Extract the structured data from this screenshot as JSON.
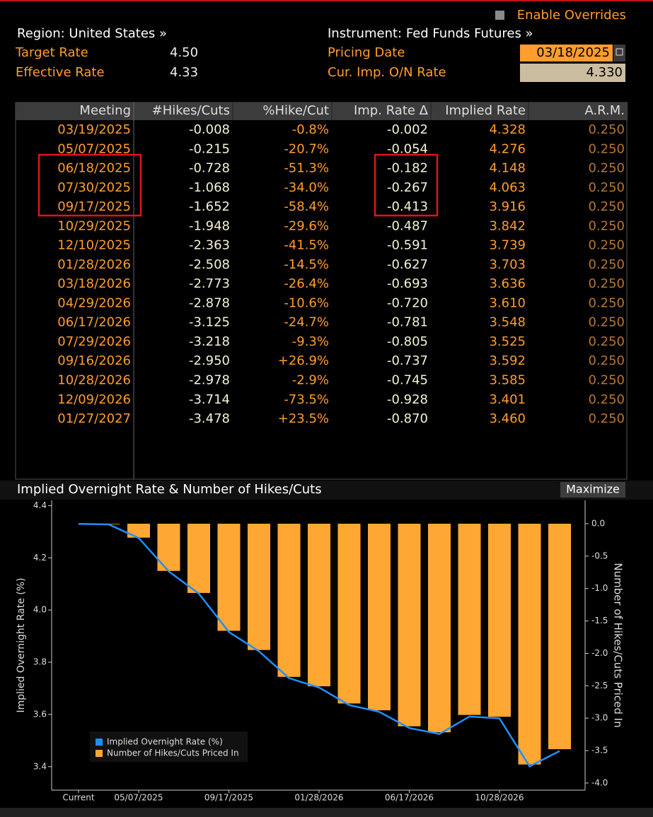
{
  "header": {
    "overrides": "Enable Overrides",
    "region": "Region: United States »",
    "instrument": "Instrument: Fed Funds Futures »",
    "fields": [
      {
        "label": "Target Rate",
        "value": "4.50"
      },
      {
        "label": "Effective Rate",
        "value": "4.33"
      },
      {
        "label": "Pricing Date",
        "value": "03/18/2025"
      },
      {
        "label": "Cur. Imp. O/N Rate",
        "value": "4.330"
      }
    ]
  },
  "table": {
    "columns": [
      "Meeting",
      "#Hikes/Cuts",
      "%Hike/Cut",
      "Imp. Rate Δ",
      "Implied Rate",
      "A.R.M."
    ],
    "rows": [
      [
        "03/19/2025",
        "-0.008",
        "-0.8%",
        "-0.002",
        "4.328",
        "0.250"
      ],
      [
        "05/07/2025",
        "-0.215",
        "-20.7%",
        "-0.054",
        "4.276",
        "0.250"
      ],
      [
        "06/18/2025",
        "-0.728",
        "-51.3%",
        "-0.182",
        "4.148",
        "0.250"
      ],
      [
        "07/30/2025",
        "-1.068",
        "-34.0%",
        "-0.267",
        "4.063",
        "0.250"
      ],
      [
        "09/17/2025",
        "-1.652",
        "-58.4%",
        "-0.413",
        "3.916",
        "0.250"
      ],
      [
        "10/29/2025",
        "-1.948",
        "-29.6%",
        "-0.487",
        "3.842",
        "0.250"
      ],
      [
        "12/10/2025",
        "-2.363",
        "-41.5%",
        "-0.591",
        "3.739",
        "0.250"
      ],
      [
        "01/28/2026",
        "-2.508",
        "-14.5%",
        "-0.627",
        "3.703",
        "0.250"
      ],
      [
        "03/18/2026",
        "-2.773",
        "-26.4%",
        "-0.693",
        "3.636",
        "0.250"
      ],
      [
        "04/29/2026",
        "-2.878",
        "-10.6%",
        "-0.720",
        "3.610",
        "0.250"
      ],
      [
        "06/17/2026",
        "-3.125",
        "-24.7%",
        "-0.781",
        "3.548",
        "0.250"
      ],
      [
        "07/29/2026",
        "-3.218",
        "-9.3%",
        "-0.805",
        "3.525",
        "0.250"
      ],
      [
        "09/16/2026",
        "-2.950",
        "+26.9%",
        "-0.737",
        "3.592",
        "0.250"
      ],
      [
        "10/28/2026",
        "-2.978",
        "-2.9%",
        "-0.745",
        "3.585",
        "0.250"
      ],
      [
        "12/09/2026",
        "-3.714",
        "-73.5%",
        "-0.928",
        "3.401",
        "0.250"
      ],
      [
        "01/27/2027",
        "-3.478",
        "+23.5%",
        "-0.870",
        "3.460",
        "0.250"
      ]
    ]
  },
  "chart_data": {
    "type": "combo",
    "title": "Implied Overnight Rate & Number of Hikes/Cuts",
    "button": "Maximize",
    "ylabel": "Implied Overnight Rate (%)",
    "y2label": "Number of Hikes/Cuts Priced In",
    "categories": [
      "Current",
      null,
      "05/07/2025",
      null,
      null,
      "09/17/2025",
      null,
      null,
      "01/28/2026",
      null,
      null,
      "06/17/2026",
      null,
      null,
      "10/28/2026",
      null,
      null
    ],
    "series": [
      {
        "name": "Implied Overnight Rate (%)",
        "type": "line",
        "axis": "y",
        "color": "#1f8fff",
        "values": [
          4.33,
          4.328,
          4.276,
          4.148,
          4.063,
          3.916,
          3.842,
          3.739,
          3.703,
          3.636,
          3.61,
          3.548,
          3.525,
          3.592,
          3.585,
          3.401,
          3.46
        ]
      },
      {
        "name": "Number of Hikes/Cuts Priced In",
        "type": "bar",
        "axis": "y2",
        "color": "#ffa733",
        "values": [
          null,
          -0.008,
          -0.215,
          -0.728,
          -1.068,
          -1.652,
          -1.948,
          -2.363,
          -2.508,
          -2.773,
          -2.878,
          -3.125,
          -3.218,
          -2.95,
          -2.978,
          -3.714,
          -3.478
        ]
      }
    ],
    "ylim": [
      3.31,
      4.42
    ],
    "yticks": [
      3.4,
      3.6,
      3.8,
      {
        "value": 4,
        "label": "4.0"
      },
      4.2,
      4.4
    ],
    "y2lim": [
      -4.11,
      0.36
    ],
    "y2ticks": [
      {
        "value": 0,
        "label": "0.0"
      },
      -0.5,
      {
        "value": -1,
        "label": "-1.0"
      },
      -1.5,
      {
        "value": -2,
        "label": "-2.0"
      },
      -2.5,
      {
        "value": -3,
        "label": "-3.0"
      },
      -3.5,
      {
        "value": -4,
        "label": "-4.0"
      }
    ],
    "legend": "lower left"
  }
}
